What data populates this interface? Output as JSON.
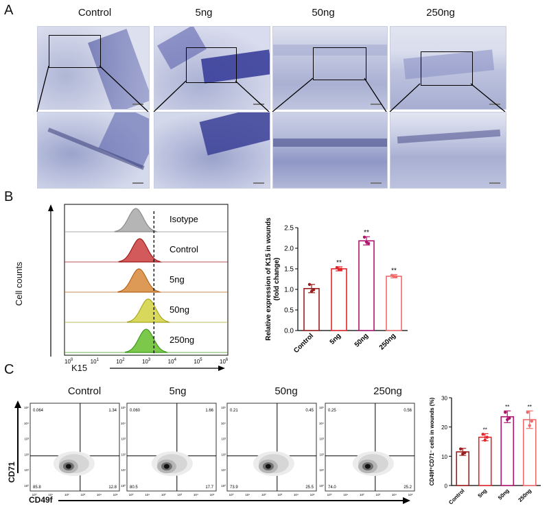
{
  "panels": {
    "a": "A",
    "b": "B",
    "c": "C"
  },
  "panel_a": {
    "conditions": [
      "Control",
      "5ng",
      "50ng",
      "250ng"
    ]
  },
  "panel_b": {
    "histogram": {
      "y_label": "Cell counts",
      "x_label": "K15",
      "x_ticks": [
        "10",
        "10",
        "10",
        "10",
        "10",
        "10",
        "10"
      ],
      "x_tick_exponents": [
        "0",
        "1",
        "2",
        "3",
        "4",
        "5",
        "6"
      ],
      "tracks": [
        {
          "label": "Isotype",
          "color": "#8c8c8c",
          "fill": "#b5b5b5",
          "peak": 2.6
        },
        {
          "label": "Control",
          "color": "#a11b1b",
          "fill": "#d25a5a",
          "peak": 2.75
        },
        {
          "label": "5ng",
          "color": "#b5651d",
          "fill": "#dc9a56",
          "peak": 2.72
        },
        {
          "label": "50ng",
          "color": "#a9a820",
          "fill": "#d7d85c",
          "peak": 3.08
        },
        {
          "label": "250ng",
          "color": "#3f9a1e",
          "fill": "#7bc84a",
          "peak": 3.0
        }
      ],
      "gate_value": 3.3
    }
  },
  "chart_data": [
    {
      "type": "bar",
      "title": "",
      "categories": [
        "Control",
        "5ng",
        "50ng",
        "250ng"
      ],
      "values": [
        1.02,
        1.5,
        2.18,
        1.32
      ],
      "errors": [
        0.1,
        0.05,
        0.1,
        0.04
      ],
      "points": [
        [
          1.12,
          0.95,
          0.99
        ],
        [
          1.53,
          1.48,
          1.49
        ],
        [
          2.27,
          2.15,
          2.12
        ],
        [
          1.34,
          1.31,
          1.31
        ]
      ],
      "significance": [
        "",
        "**",
        "**",
        "**"
      ],
      "colors": [
        "#9b1c1c",
        "#e0262b",
        "#b0156e",
        "#f06a6a"
      ],
      "ylabel": "Relative expression of K15 in wounds",
      "ylabel2": "(fold change)",
      "ylim": [
        0,
        2.5
      ],
      "yticks": [
        "0.0",
        "0.5",
        "1.0",
        "1.5",
        "2.0",
        "2.5"
      ]
    },
    {
      "type": "bar",
      "title": "",
      "categories": [
        "Control",
        "5ng",
        "50ng",
        "250ng"
      ],
      "values": [
        11.5,
        16.5,
        23.5,
        22.5
      ],
      "errors": [
        1.2,
        1.2,
        2.0,
        3.0
      ],
      "points": [
        [
          12.5,
          10.8,
          11.2
        ],
        [
          17.5,
          15.5,
          16.5
        ],
        [
          25.0,
          22.5,
          23.0
        ],
        [
          25.0,
          20.5,
          22.0
        ]
      ],
      "significance": [
        "",
        "**",
        "**",
        "**"
      ],
      "colors": [
        "#9b1c1c",
        "#e0262b",
        "#b0156e",
        "#f06a6a"
      ],
      "ylabel": "CD49f⁺CD71⁻ cells in wounds (%)",
      "ylim": [
        0,
        30
      ],
      "yticks": [
        "0",
        "10",
        "20",
        "30"
      ]
    }
  ],
  "panel_c": {
    "conditions": [
      "Control",
      "5ng",
      "50ng",
      "250ng"
    ],
    "y_label": "CD71",
    "x_label": "CD49f",
    "quadrants": [
      {
        "ul": "0.064",
        "ur": "1.34",
        "ll": "85.8",
        "lr": "12.8"
      },
      {
        "ul": "0.060",
        "ur": "1.66",
        "ll": "80.5",
        "lr": "17.7"
      },
      {
        "ul": "0.21",
        "ur": "0.45",
        "ll": "73.9",
        "lr": "25.5"
      },
      {
        "ul": "0.25",
        "ur": "0.56",
        "ll": "74.0",
        "lr": "25.2"
      }
    ],
    "y_ticks": [
      "10⁵",
      "10⁴",
      "10³",
      "10²",
      "10¹",
      "10⁰"
    ],
    "x_ticks": [
      "10⁰",
      "10¹",
      "10²",
      "10³",
      "10⁴",
      "10⁵"
    ]
  }
}
